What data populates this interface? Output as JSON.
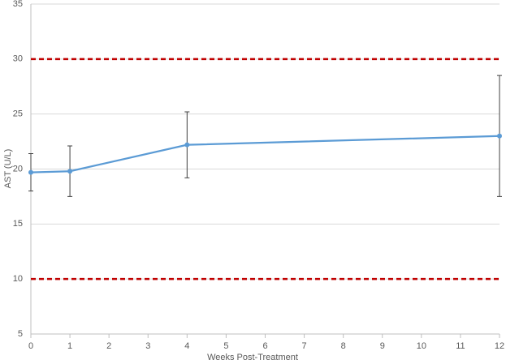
{
  "chart_data": {
    "type": "line",
    "x_label": "Weeks Post-Treatment",
    "y_label": "AST (U/L)",
    "x": [
      0,
      1,
      4,
      12
    ],
    "series": [
      {
        "color": "#5b9bd5",
        "values": [
          19.7,
          19.8,
          22.2,
          23.0
        ],
        "errors": [
          1.7,
          2.3,
          3.0,
          5.5
        ]
      }
    ],
    "xlim": [
      0,
      12
    ],
    "xticks": [
      0,
      1,
      2,
      3,
      4,
      5,
      6,
      7,
      8,
      9,
      10,
      11,
      12
    ],
    "ylim": [
      5,
      35
    ],
    "yticks": [
      5,
      10,
      15,
      20,
      25,
      30,
      35
    ],
    "grid": true,
    "reference_lines": [
      {
        "value": 30,
        "color": "#c00000"
      },
      {
        "value": 10,
        "color": "#c00000"
      }
    ]
  }
}
